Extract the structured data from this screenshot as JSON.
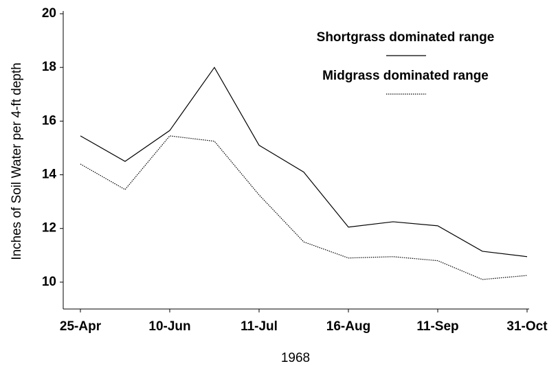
{
  "chart_data": {
    "type": "line",
    "x_label": "1968",
    "y_label": "Inches of Soil Water per 4-ft depth",
    "categories": [
      "25-Apr",
      null,
      "10-Jun",
      null,
      "11-Jul",
      null,
      "16-Aug",
      null,
      "11-Sep",
      null,
      "31-Oct"
    ],
    "series": [
      {
        "name": "Shortgrass dominated range",
        "color": "#000000",
        "dash": "solid",
        "values": [
          15.45,
          14.5,
          15.65,
          18.0,
          15.1,
          14.1,
          12.05,
          12.25,
          12.1,
          11.15,
          10.95
        ]
      },
      {
        "name": "Midgrass dominated range",
        "color": "#000000",
        "dash": "dotted",
        "values": [
          14.4,
          13.45,
          15.45,
          15.25,
          13.25,
          11.5,
          10.9,
          10.95,
          10.8,
          10.1,
          10.25
        ]
      }
    ],
    "ylim": [
      9,
      20
    ],
    "yticks": [
      10,
      12,
      14,
      16,
      18,
      20
    ],
    "grid": false,
    "legend": "top-right"
  }
}
